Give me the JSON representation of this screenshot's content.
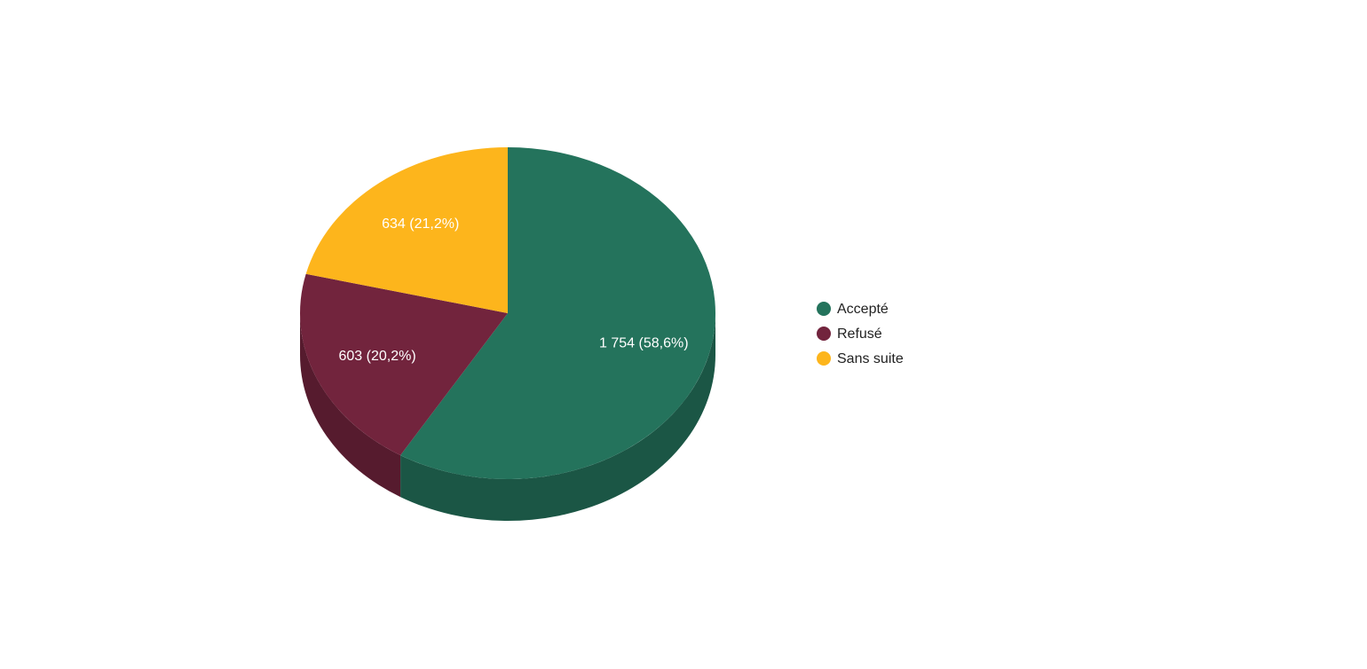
{
  "chart_data": {
    "type": "pie",
    "categories": [
      "Accepté",
      "Refusé",
      "Sans suite"
    ],
    "values": [
      1754,
      603,
      634
    ],
    "value_labels": [
      "1 754 (58,6%)",
      "603 (20,2%)",
      "634 (21,2%)"
    ],
    "colors": [
      "#24735c",
      "#72243d",
      "#fdb51c"
    ],
    "legend": "right"
  }
}
